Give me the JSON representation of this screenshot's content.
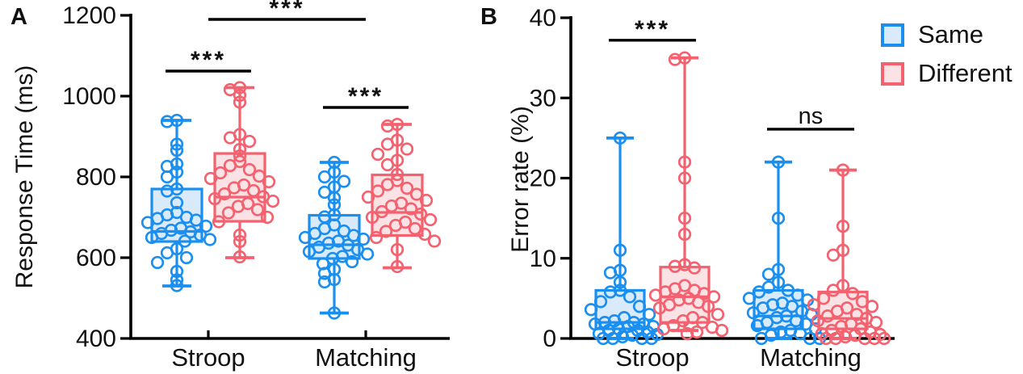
{
  "legend": {
    "items": [
      {
        "label": "Same",
        "series": "Same"
      },
      {
        "label": "Different",
        "series": "Different"
      }
    ]
  },
  "series_styles": {
    "Same": {
      "color": "#1b8ff0",
      "fill": "#d9eafa"
    },
    "Different": {
      "color": "#f4616f",
      "fill": "#fbe2e5"
    }
  },
  "chart_data": [
    {
      "type": "box",
      "panel_label": "A",
      "ylabel": "Response Time (ms)",
      "ylim": [
        400,
        1200
      ],
      "yticks": [
        400,
        600,
        800,
        1000,
        1200
      ],
      "categories": [
        "Stroop",
        "Matching"
      ],
      "legend_entries": [
        "Same",
        "Different"
      ],
      "grid": false,
      "groups": [
        {
          "category": "Stroop",
          "series": "Same",
          "box": {
            "min": 530,
            "q1": 640,
            "median": 665,
            "q3": 770,
            "max": 940
          },
          "points": [
            940,
            937,
            881,
            866,
            832,
            826,
            812,
            800,
            770,
            765,
            736,
            712,
            706,
            700,
            697,
            693,
            687,
            678,
            673,
            668,
            664,
            660,
            656,
            650,
            645,
            641,
            622,
            612,
            600,
            588,
            566,
            545,
            531
          ]
        },
        {
          "category": "Stroop",
          "series": "Different",
          "box": {
            "min": 600,
            "q1": 690,
            "median": 750,
            "q3": 858,
            "max": 1021
          },
          "points": [
            1021,
            1016,
            1002,
            985,
            905,
            897,
            888,
            868,
            852,
            838,
            828,
            818,
            810,
            802,
            796,
            788,
            780,
            773,
            766,
            758,
            751,
            746,
            740,
            734,
            727,
            719,
            711,
            700,
            689,
            656,
            640,
            602
          ]
        },
        {
          "category": "Matching",
          "series": "Same",
          "box": {
            "min": 463,
            "q1": 598,
            "median": 632,
            "q3": 705,
            "max": 836
          },
          "points": [
            836,
            812,
            800,
            789,
            775,
            762,
            748,
            731,
            706,
            701,
            681,
            672,
            666,
            660,
            655,
            650,
            646,
            641,
            636,
            631,
            626,
            620,
            615,
            609,
            603,
            598,
            590,
            585,
            571,
            561,
            546,
            540,
            463
          ]
        },
        {
          "category": "Matching",
          "series": "Different",
          "box": {
            "min": 575,
            "q1": 655,
            "median": 712,
            "q3": 805,
            "max": 930
          },
          "points": [
            930,
            926,
            891,
            881,
            869,
            856,
            841,
            830,
            806,
            791,
            781,
            772,
            765,
            757,
            750,
            742,
            735,
            728,
            721,
            714,
            708,
            700,
            694,
            688,
            680,
            672,
            665,
            658,
            650,
            641,
            620,
            578
          ]
        }
      ],
      "annotations": [
        {
          "label": "***",
          "from": "Stroop:Same",
          "to": "Stroop:Different",
          "y": 1062
        },
        {
          "label": "***",
          "from": "Stroop:center",
          "to": "Matching:center",
          "y": 1190
        },
        {
          "label": "***",
          "from": "Matching:Same",
          "to": "Matching:Different",
          "y": 972
        }
      ]
    },
    {
      "type": "box",
      "panel_label": "B",
      "ylabel": "Error rate (%)",
      "ylim": [
        0,
        40
      ],
      "yticks": [
        0,
        10,
        20,
        30,
        40
      ],
      "categories": [
        "Stroop",
        "Matching"
      ],
      "legend_entries": [
        "Same",
        "Different"
      ],
      "grid": false,
      "groups": [
        {
          "category": "Stroop",
          "series": "Same",
          "box": {
            "min": 0,
            "q1": 1.2,
            "median": 2.0,
            "q3": 6.0,
            "max": 25
          },
          "points": [
            25,
            11,
            8.5,
            8.2,
            7,
            6,
            5.8,
            5.2,
            4.6,
            4,
            3.6,
            3,
            2.6,
            2.2,
            2,
            2,
            1.8,
            1.8,
            1.5,
            1.5,
            1.2,
            1,
            1,
            0.8,
            0.6,
            0.5,
            0.4,
            0.2,
            0,
            0,
            0,
            0
          ]
        },
        {
          "category": "Stroop",
          "series": "Different",
          "box": {
            "min": 1.0,
            "q1": 2.0,
            "median": 5.2,
            "q3": 8.9,
            "max": 35
          },
          "points": [
            35,
            34.8,
            22,
            20,
            15,
            13,
            9.2,
            9,
            8.8,
            6.6,
            6.2,
            6,
            5.8,
            5.6,
            5.4,
            5.2,
            5,
            4.8,
            4.5,
            4.2,
            4,
            3.8,
            3,
            2.6,
            2.2,
            2,
            1.6,
            1.4,
            1.2,
            1,
            0.8,
            0.6
          ]
        },
        {
          "category": "Matching",
          "series": "Same",
          "box": {
            "min": 0,
            "q1": 1.2,
            "median": 2.8,
            "q3": 6.0,
            "max": 22
          },
          "points": [
            22,
            15,
            8.6,
            8,
            7,
            6.4,
            6,
            5.8,
            5.4,
            5,
            4.8,
            4.4,
            4.2,
            4,
            3.8,
            3.4,
            3.2,
            3,
            2.8,
            2.6,
            2.2,
            2,
            1.8,
            1.6,
            1.2,
            1,
            0.8,
            0.6,
            0.4,
            0,
            0,
            0
          ]
        },
        {
          "category": "Matching",
          "series": "Different",
          "box": {
            "min": 0,
            "q1": 1.2,
            "median": 2.5,
            "q3": 5.8,
            "max": 21
          },
          "points": [
            21,
            14,
            11,
            10.4,
            6.6,
            6,
            5.6,
            5,
            4.6,
            4.2,
            4,
            3.8,
            3.4,
            3,
            2.8,
            2.5,
            2.2,
            2,
            1.8,
            1.5,
            1.2,
            1,
            0.8,
            0.6,
            0.5,
            0.4,
            0.2,
            0,
            0,
            0,
            0,
            0
          ]
        }
      ],
      "annotations": [
        {
          "label": "***",
          "from": "Stroop:Same",
          "to": "Stroop:Different",
          "y": 37.2
        },
        {
          "label": "ns",
          "from": "Matching:Same",
          "to": "Matching:Different",
          "y": 26.1
        }
      ]
    }
  ]
}
